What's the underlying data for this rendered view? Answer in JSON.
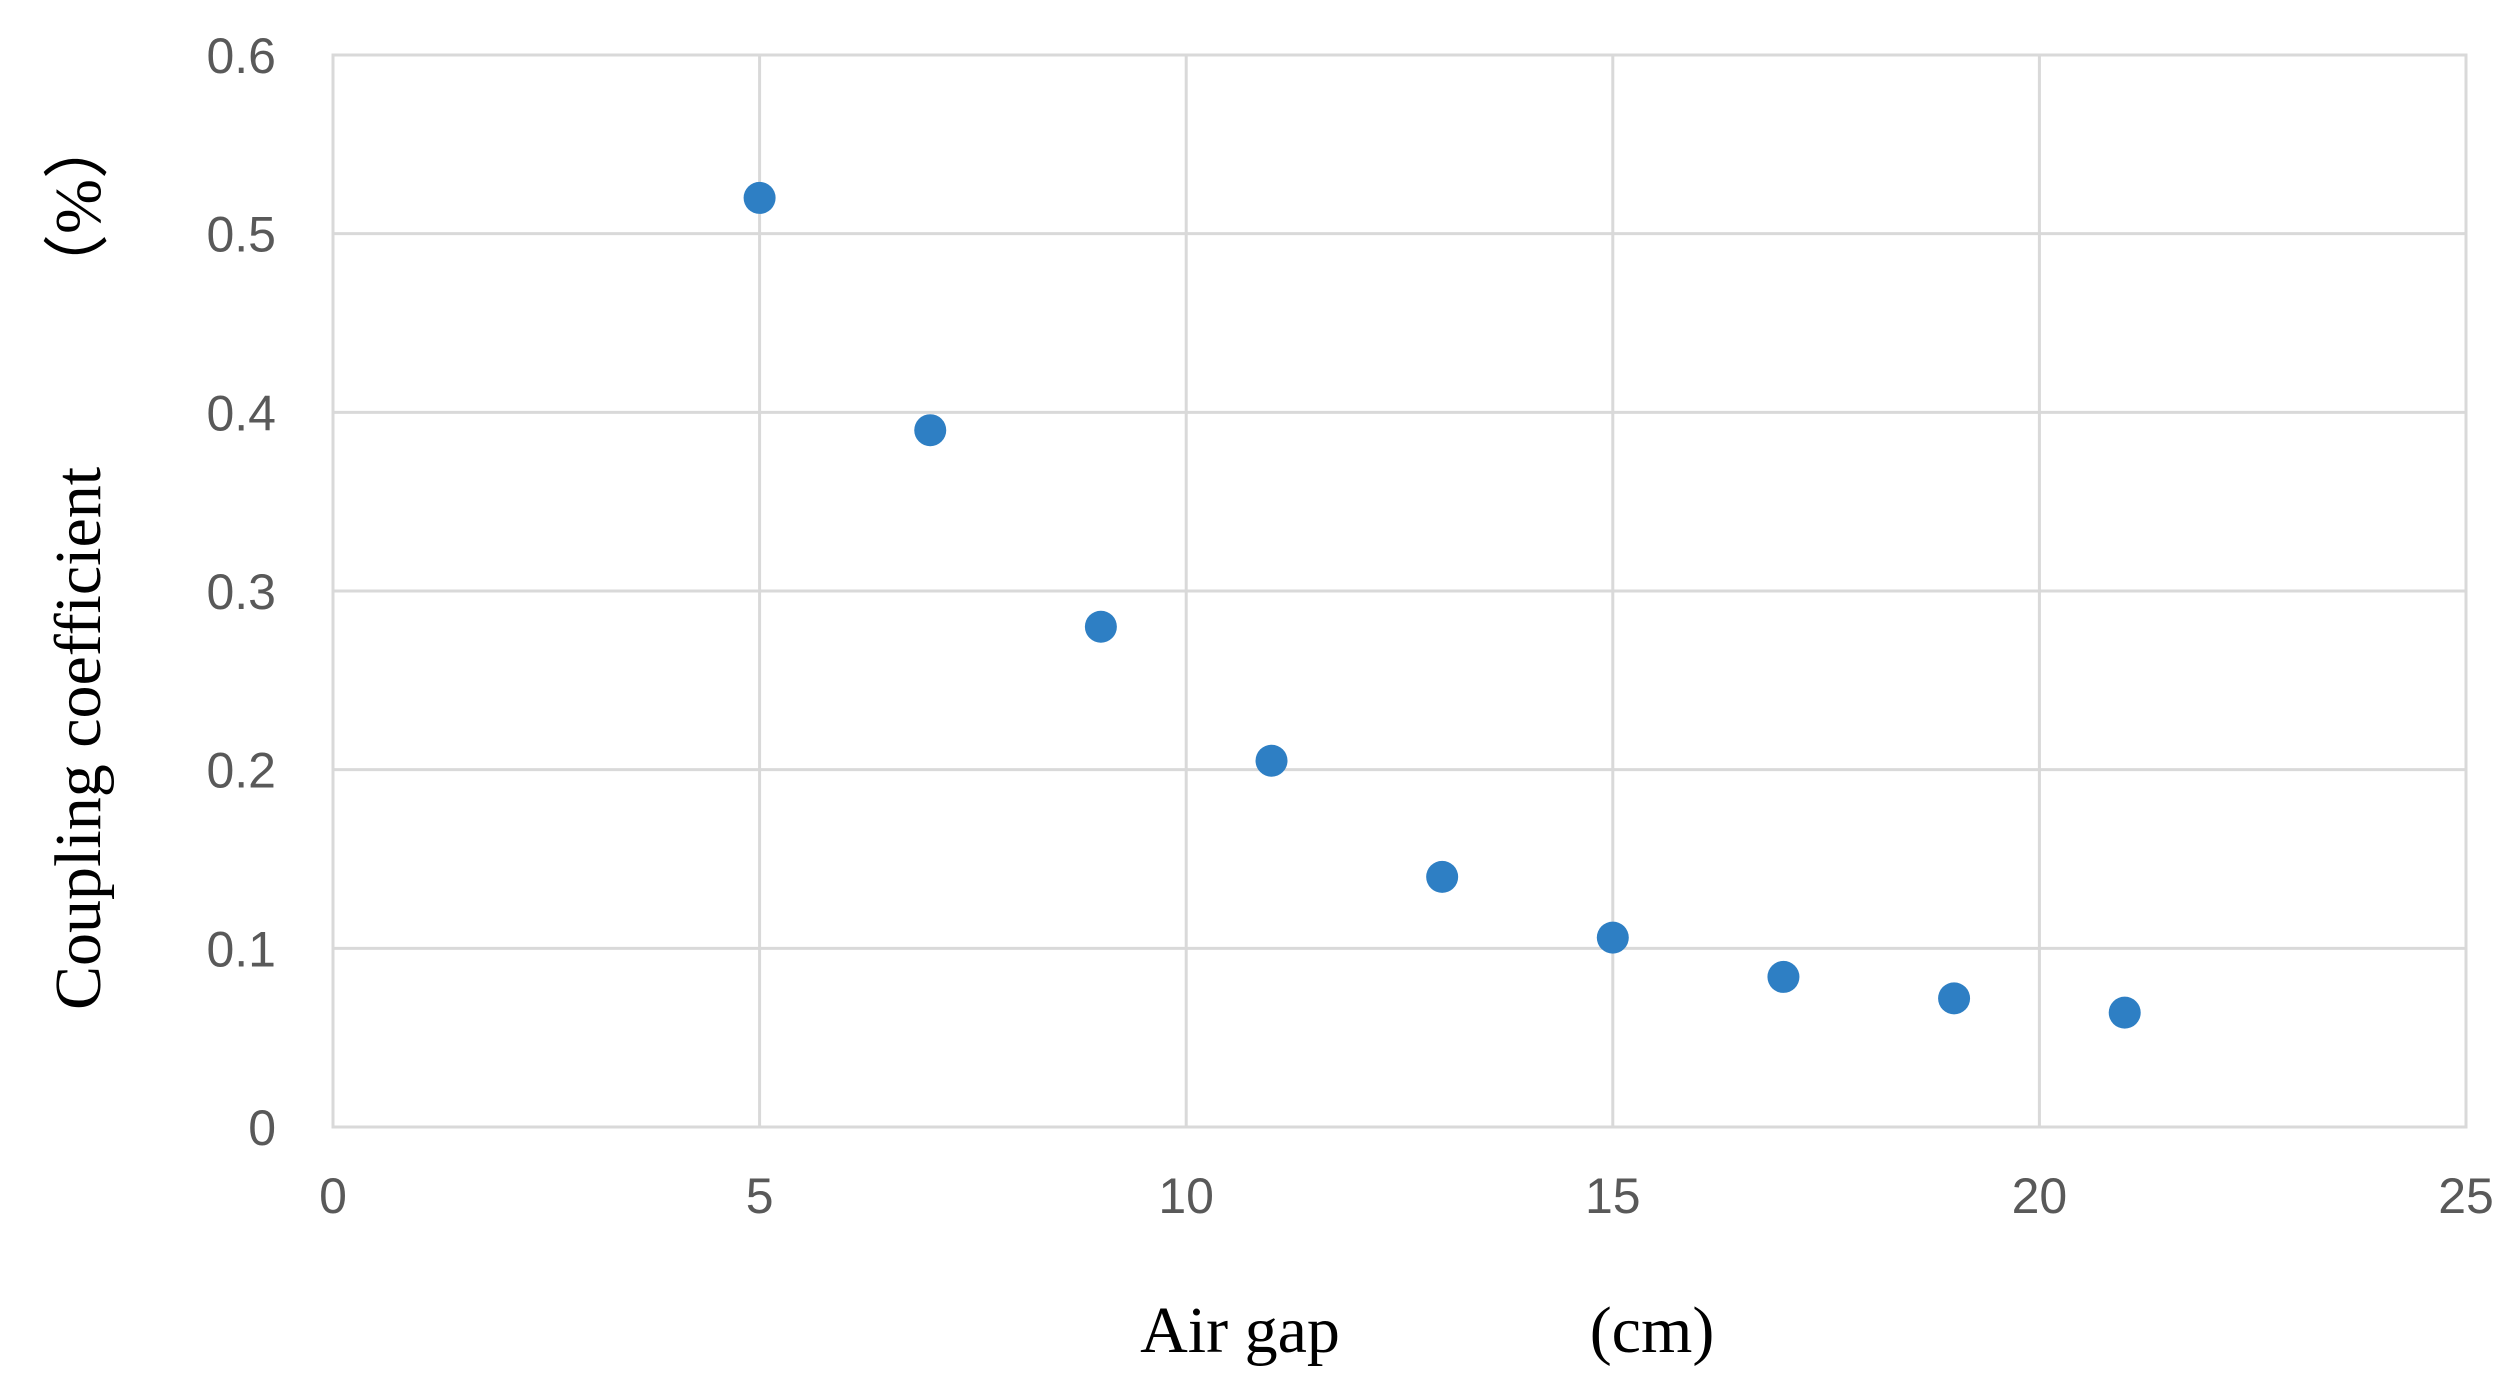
{
  "chart_data": {
    "type": "scatter",
    "title": "",
    "xlabel": "Air gap",
    "xlabel_unit": "(cm)",
    "ylabel": "Coupling coefficient",
    "ylabel_unit": "（%）",
    "xlim": [
      0,
      25
    ],
    "ylim": [
      0,
      0.6
    ],
    "x_ticks": [
      0,
      5,
      10,
      15,
      20,
      25
    ],
    "y_ticks": [
      0,
      0.1,
      0.2,
      0.3,
      0.4,
      0.5,
      0.6
    ],
    "x_tick_labels": [
      "0",
      "5",
      "10",
      "15",
      "20",
      "25"
    ],
    "y_tick_labels": [
      "0",
      "0.1",
      "0.2",
      "0.3",
      "0.4",
      "0.5",
      "0.6"
    ],
    "grid": true,
    "legend": "none",
    "marker_color": "#2e7fc4",
    "series": [
      {
        "x": [
          5,
          7,
          9,
          11,
          13,
          15,
          17,
          19,
          21
        ],
        "y": [
          0.52,
          0.39,
          0.28,
          0.205,
          0.14,
          0.106,
          0.084,
          0.072,
          0.064
        ]
      }
    ]
  }
}
